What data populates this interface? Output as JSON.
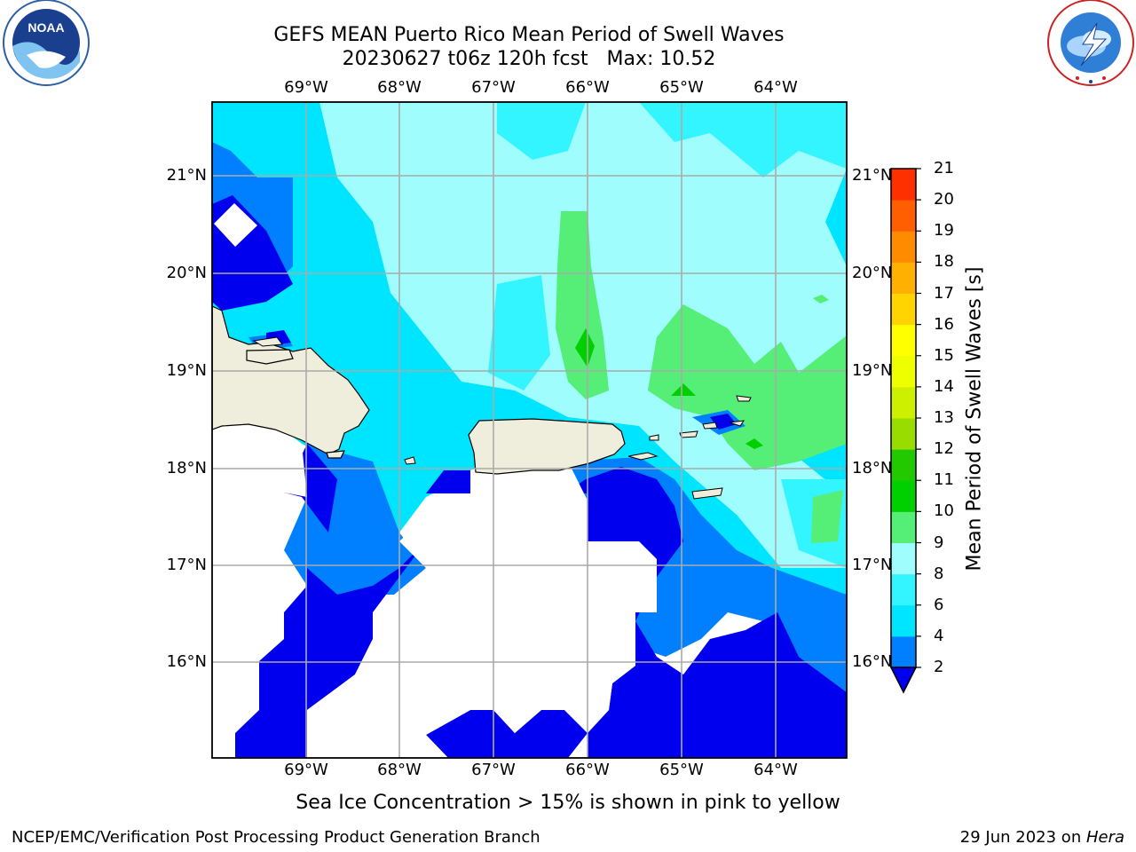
{
  "header": {
    "title_line1": "GEFS MEAN Puerto Rico Mean Period of Swell Waves",
    "title_line2": "20230627 t06z 120h fcst   Max: 10.52"
  },
  "logos": {
    "left": {
      "icon": "noaa-logo",
      "text": "NOAA",
      "ring_text": "NATIONAL OCEANIC AND ATMOSPHERIC ADMINISTRATION · U.S. DEPARTMENT OF COMMERCE"
    },
    "right": {
      "icon": "nws-logo",
      "ring_text": "NATIONAL WEATHER SERVICE"
    }
  },
  "map": {
    "lon_ticks": [
      "69°W",
      "68°W",
      "67°W",
      "66°W",
      "65°W",
      "64°W"
    ],
    "lat_ticks": [
      "21°N",
      "20°N",
      "19°N",
      "18°N",
      "17°N",
      "16°N"
    ],
    "land_color": "#efeedc",
    "grid": true
  },
  "colorbar": {
    "label": "Mean Period of Swell Waves [s]",
    "ticks": [
      "21",
      "20",
      "19",
      "18",
      "17",
      "16",
      "15",
      "14",
      "13",
      "12",
      "11",
      "10",
      "9",
      "8",
      "6",
      "4",
      "2"
    ],
    "colors": [
      "#0000ee",
      "#0080ff",
      "#00e5ff",
      "#33f5ff",
      "#9ffdfd",
      "#55ef77",
      "#00d000",
      "#22c800",
      "#99dd00",
      "#ccf000",
      "#eeff00",
      "#ffff00",
      "#ffd400",
      "#ffb000",
      "#ff8c00",
      "#ff5f00",
      "#ff3000",
      "#ff0000"
    ],
    "extend": "min"
  },
  "footer": {
    "note": "Sea Ice Concentration > 15% is shown in pink to yellow",
    "left": "NCEP/EMC/Verification Post Processing Product Generation Branch",
    "right_date": "29 Jun 2023 on ",
    "right_host": "Hera"
  }
}
